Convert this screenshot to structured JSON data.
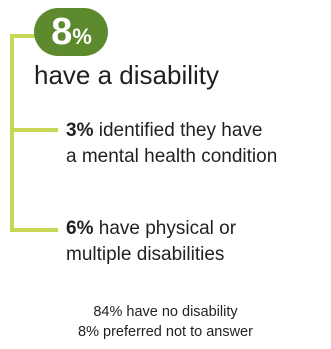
{
  "badge": {
    "number": "8",
    "percent_sign": "%"
  },
  "headline": "have a disability",
  "items": [
    {
      "value": "3%",
      "line1": " identified they have",
      "line2": "a mental health condition"
    },
    {
      "value": "6%",
      "line1": " have physical or",
      "line2": "multiple disabilities"
    }
  ],
  "footer": [
    "84% have no disability",
    "8% preferred not to answer"
  ],
  "colors": {
    "badge": "#5e8a2e",
    "bracket": "#c7d654",
    "text": "#231f20"
  }
}
